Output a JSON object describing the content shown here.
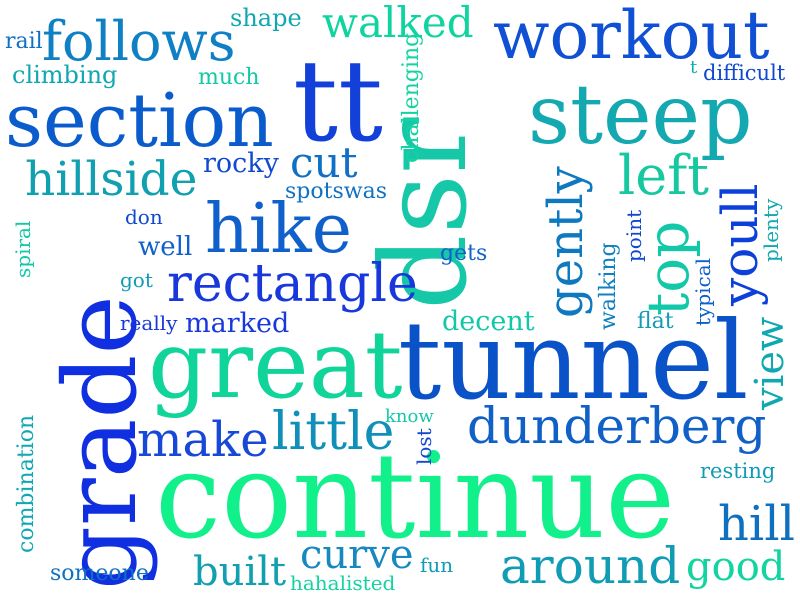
{
  "words": [
    {
      "text": "continue",
      "color": "#12f08c"
    },
    {
      "text": "tunnel",
      "color": "#0a52c8"
    },
    {
      "text": "great",
      "color": "#10d49a"
    },
    {
      "text": "grade",
      "color": "#0f2fe0"
    },
    {
      "text": "dsr",
      "color": "#16c8a8"
    },
    {
      "text": "tt",
      "color": "#1240d8"
    },
    {
      "text": "steep",
      "color": "#14a8b0"
    },
    {
      "text": "section",
      "color": "#0a5ccc"
    },
    {
      "text": "workout",
      "color": "#1050d4"
    },
    {
      "text": "follows",
      "color": "#1080c4"
    },
    {
      "text": "walked",
      "color": "#10d4a0"
    },
    {
      "text": "hike",
      "color": "#1060cc"
    },
    {
      "text": "rectangle",
      "color": "#1838dc"
    },
    {
      "text": "dunderberg",
      "color": "#1060c8"
    },
    {
      "text": "around",
      "color": "#109cb4"
    },
    {
      "text": "hillside",
      "color": "#10a0b0"
    },
    {
      "text": "gently",
      "color": "#0e78c0"
    },
    {
      "text": "left",
      "color": "#16c8a0"
    },
    {
      "text": "top",
      "color": "#12c8a8"
    },
    {
      "text": "youll",
      "color": "#0c40d8"
    },
    {
      "text": "little",
      "color": "#1090b8"
    },
    {
      "text": "make",
      "color": "#1848d8"
    },
    {
      "text": "cut",
      "color": "#1070c4"
    },
    {
      "text": "view",
      "color": "#10a8b0"
    },
    {
      "text": "hill",
      "color": "#1070c0"
    },
    {
      "text": "good",
      "color": "#12d4a0"
    },
    {
      "text": "curve",
      "color": "#1888c0"
    },
    {
      "text": "built",
      "color": "#12a0b0"
    },
    {
      "text": "rocky",
      "color": "#1048d0"
    },
    {
      "text": "marked",
      "color": "#1838dc"
    },
    {
      "text": "decent",
      "color": "#12c8a8"
    },
    {
      "text": "shape",
      "color": "#10a8b0"
    },
    {
      "text": "rail",
      "color": "#1070c4"
    },
    {
      "text": "climbing",
      "color": "#10a8b0"
    },
    {
      "text": "much",
      "color": "#12c8a8"
    },
    {
      "text": "spotswas",
      "color": "#1070c4"
    },
    {
      "text": "challenging",
      "color": "#12d4a0"
    },
    {
      "text": "difficult",
      "color": "#1048d0"
    },
    {
      "text": "t",
      "color": "#12a8b0"
    },
    {
      "text": "don",
      "color": "#1048d0"
    },
    {
      "text": "well",
      "color": "#1060cc"
    },
    {
      "text": "got",
      "color": "#109cb4"
    },
    {
      "text": "really",
      "color": "#1838dc"
    },
    {
      "text": "spiral",
      "color": "#12c8a8"
    },
    {
      "text": "gets",
      "color": "#1060cc"
    },
    {
      "text": "walking",
      "color": "#1080c0"
    },
    {
      "text": "point",
      "color": "#1048d0"
    },
    {
      "text": "typical",
      "color": "#1060cc"
    },
    {
      "text": "plenty",
      "color": "#12a8b0"
    },
    {
      "text": "flat",
      "color": "#109cb4"
    },
    {
      "text": "combination",
      "color": "#10a8b0"
    },
    {
      "text": "know",
      "color": "#12c8a8"
    },
    {
      "text": "lost",
      "color": "#1048d0"
    },
    {
      "text": "resting",
      "color": "#109cb4"
    },
    {
      "text": "someone",
      "color": "#1070c4"
    },
    {
      "text": "fun",
      "color": "#109cb4"
    },
    {
      "text": "hahalisted",
      "color": "#12d4a0"
    }
  ]
}
